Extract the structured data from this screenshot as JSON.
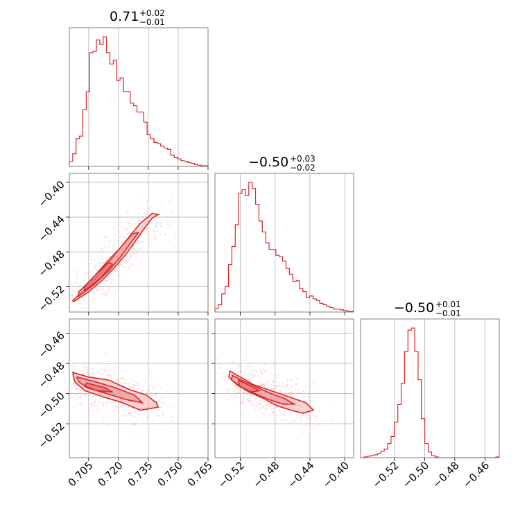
{
  "colors": {
    "accent": "#d62728",
    "grid": "#b0b0b0",
    "axes": "#7f7f7f",
    "fill": "#f4b6b4"
  },
  "chart_data": {
    "type": "corner",
    "parameters": [
      {
        "title_main": "0.71",
        "title_plus": "+0.02",
        "title_minus": "−0.01",
        "ticks": [
          0.705,
          0.72,
          0.735,
          0.75,
          0.765
        ],
        "tick_labels": [
          "0.705",
          "0.720",
          "0.735",
          "0.750",
          "0.765"
        ],
        "range": [
          0.6953,
          0.765
        ]
      },
      {
        "title_main": "−0.50",
        "title_plus": "+0.03",
        "title_minus": "−0.02",
        "ticks": [
          -0.52,
          -0.48,
          -0.44,
          -0.4
        ],
        "tick_labels": [
          "−0.52",
          "−0.48",
          "−0.44",
          "−0.40"
        ],
        "range": [
          -0.549,
          -0.3898
        ]
      },
      {
        "title_main": "−0.50",
        "title_plus": "+0.01",
        "title_minus": "−0.01",
        "ticks": [
          -0.52,
          -0.5,
          -0.48,
          -0.46
        ],
        "tick_labels": [
          "−0.52",
          "−0.50",
          "−0.48",
          "−0.46"
        ],
        "y_tick_labels": [
          "−0.46",
          "−0.48",
          "−0.50",
          "−0.52"
        ],
        "range": [
          -0.5425,
          -0.4505
        ]
      }
    ],
    "histograms": [
      {
        "param": 0,
        "counts": [
          8,
          20,
          44,
          48,
          90,
          118,
          180,
          182,
          200,
          193,
          205,
          180,
          162,
          168,
          136,
          140,
          118,
          118,
          100,
          96,
          86,
          86,
          70,
          50,
          44,
          38,
          36,
          32,
          29,
          27,
          18,
          14,
          12,
          9,
          8,
          6,
          5,
          3,
          2,
          1,
          1
        ]
      },
      {
        "param": 1,
        "counts": [
          5,
          10,
          25,
          35,
          65,
          90,
          120,
          163,
          168,
          160,
          178,
          170,
          148,
          125,
          110,
          95,
          86,
          86,
          78,
          76,
          70,
          60,
          52,
          42,
          43,
          32,
          28,
          20,
          22,
          18,
          16,
          12,
          10,
          8,
          6,
          4,
          4,
          3,
          2,
          1,
          1
        ]
      },
      {
        "param": 2,
        "counts": [
          0,
          1,
          2,
          3,
          4,
          6,
          9,
          12,
          20,
          30,
          50,
          75,
          105,
          150,
          180,
          183,
          150,
          110,
          55,
          20,
          8,
          3,
          1,
          0,
          0,
          0,
          0,
          0,
          0,
          0,
          0,
          0,
          0,
          0,
          0,
          0,
          0,
          0,
          0,
          0,
          1
        ]
      }
    ],
    "scatter_2d": [
      {
        "x_param": 0,
        "y_param": 1,
        "contour_1": [
          [
            0.6975,
            -0.537
          ],
          [
            0.705,
            -0.526
          ],
          [
            0.712,
            -0.512
          ],
          [
            0.718,
            -0.498
          ],
          [
            0.724,
            -0.482
          ],
          [
            0.729,
            -0.466
          ],
          [
            0.733,
            -0.453
          ],
          [
            0.737,
            -0.441
          ],
          [
            0.74,
            -0.437
          ],
          [
            0.737,
            -0.436
          ],
          [
            0.731,
            -0.447
          ],
          [
            0.726,
            -0.461
          ],
          [
            0.72,
            -0.478
          ],
          [
            0.714,
            -0.495
          ],
          [
            0.708,
            -0.512
          ],
          [
            0.701,
            -0.527
          ],
          [
            0.697,
            -0.536
          ]
        ],
        "contour_2": [
          [
            0.7,
            -0.531
          ],
          [
            0.708,
            -0.517
          ],
          [
            0.715,
            -0.502
          ],
          [
            0.721,
            -0.486
          ],
          [
            0.726,
            -0.47
          ],
          [
            0.73,
            -0.458
          ],
          [
            0.727,
            -0.459
          ],
          [
            0.721,
            -0.475
          ],
          [
            0.714,
            -0.492
          ],
          [
            0.707,
            -0.51
          ],
          [
            0.7,
            -0.526
          ]
        ],
        "contour_3": [
          [
            0.703,
            -0.525
          ],
          [
            0.711,
            -0.51
          ],
          [
            0.717,
            -0.494
          ],
          [
            0.715,
            -0.492
          ],
          [
            0.709,
            -0.505
          ],
          [
            0.703,
            -0.52
          ]
        ]
      },
      {
        "x_param": 0,
        "y_param": 2,
        "contour_1": [
          [
            0.697,
            -0.486
          ],
          [
            0.705,
            -0.489
          ],
          [
            0.715,
            -0.491
          ],
          [
            0.725,
            -0.497
          ],
          [
            0.734,
            -0.501
          ],
          [
            0.739,
            -0.506
          ],
          [
            0.74,
            -0.509
          ],
          [
            0.731,
            -0.511
          ],
          [
            0.722,
            -0.506
          ],
          [
            0.712,
            -0.502
          ],
          [
            0.703,
            -0.498
          ],
          [
            0.698,
            -0.492
          ]
        ],
        "contour_2": [
          [
            0.699,
            -0.489
          ],
          [
            0.708,
            -0.492
          ],
          [
            0.718,
            -0.496
          ],
          [
            0.728,
            -0.501
          ],
          [
            0.732,
            -0.506
          ],
          [
            0.724,
            -0.504
          ],
          [
            0.714,
            -0.5
          ],
          [
            0.704,
            -0.496
          ],
          [
            0.7,
            -0.492
          ]
        ],
        "contour_3": [
          [
            0.704,
            -0.493
          ],
          [
            0.713,
            -0.496
          ],
          [
            0.717,
            -0.499
          ],
          [
            0.709,
            -0.498
          ],
          [
            0.703,
            -0.495
          ]
        ]
      },
      {
        "x_param": 1,
        "y_param": 2,
        "contour_1": [
          [
            -0.532,
            -0.485
          ],
          [
            -0.52,
            -0.489
          ],
          [
            -0.505,
            -0.494
          ],
          [
            -0.49,
            -0.497
          ],
          [
            -0.475,
            -0.5
          ],
          [
            -0.46,
            -0.503
          ],
          [
            -0.445,
            -0.506
          ],
          [
            -0.436,
            -0.511
          ],
          [
            -0.448,
            -0.513
          ],
          [
            -0.462,
            -0.511
          ],
          [
            -0.478,
            -0.508
          ],
          [
            -0.494,
            -0.503
          ],
          [
            -0.51,
            -0.499
          ],
          [
            -0.524,
            -0.494
          ],
          [
            -0.533,
            -0.489
          ]
        ],
        "contour_2": [
          [
            -0.529,
            -0.488
          ],
          [
            -0.515,
            -0.492
          ],
          [
            -0.5,
            -0.496
          ],
          [
            -0.485,
            -0.5
          ],
          [
            -0.47,
            -0.503
          ],
          [
            -0.458,
            -0.507
          ],
          [
            -0.471,
            -0.507
          ],
          [
            -0.487,
            -0.504
          ],
          [
            -0.503,
            -0.5
          ],
          [
            -0.518,
            -0.496
          ],
          [
            -0.53,
            -0.491
          ]
        ],
        "contour_3": [
          [
            -0.522,
            -0.491
          ],
          [
            -0.508,
            -0.495
          ],
          [
            -0.498,
            -0.498
          ],
          [
            -0.508,
            -0.499
          ],
          [
            -0.521,
            -0.495
          ]
        ]
      }
    ],
    "grid": true
  }
}
